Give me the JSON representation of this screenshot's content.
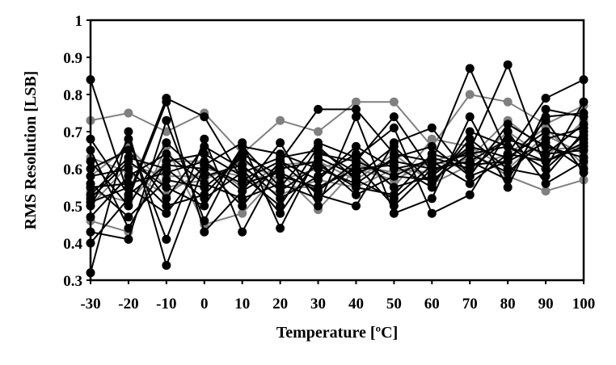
{
  "chart_data": {
    "type": "line",
    "title": "",
    "xlabel": "Temperature [ºC]",
    "ylabel": "RMS Resolution [LSB]",
    "x": [
      -30,
      -20,
      -10,
      0,
      10,
      20,
      30,
      40,
      50,
      60,
      70,
      80,
      90,
      100
    ],
    "xlim": [
      -30,
      100
    ],
    "ylim": [
      0.3,
      1
    ],
    "yticks": [
      "0.3",
      "0.4",
      "0.5",
      "0.6",
      "0.7",
      "0.8",
      "0.9",
      "1"
    ],
    "xticks": [
      "-30",
      "-20",
      "-10",
      "0",
      "10",
      "20",
      "30",
      "40",
      "50",
      "60",
      "70",
      "80",
      "90",
      "100"
    ],
    "grid": false,
    "legend": "none",
    "colors": {
      "black": "#000000",
      "gray": "#808080"
    },
    "series": [
      {
        "color": "black",
        "values": [
          0.84,
          0.53,
          0.79,
          0.74,
          0.57,
          0.62,
          0.76,
          0.76,
          0.64,
          0.62,
          0.87,
          0.64,
          0.79,
          0.84
        ]
      },
      {
        "color": "black",
        "values": [
          0.32,
          0.7,
          0.34,
          0.61,
          0.67,
          0.44,
          0.64,
          0.62,
          0.74,
          0.59,
          0.65,
          0.88,
          0.6,
          0.78
        ]
      },
      {
        "color": "black",
        "values": [
          0.4,
          0.52,
          0.78,
          0.43,
          0.54,
          0.67,
          0.5,
          0.74,
          0.48,
          0.52,
          0.74,
          0.55,
          0.76,
          0.74
        ]
      },
      {
        "color": "black",
        "values": [
          0.43,
          0.41,
          0.73,
          0.46,
          0.66,
          0.55,
          0.67,
          0.63,
          0.71,
          0.48,
          0.53,
          0.7,
          0.56,
          0.62
        ]
      },
      {
        "color": "black",
        "values": [
          0.5,
          0.68,
          0.41,
          0.68,
          0.43,
          0.62,
          0.53,
          0.5,
          0.67,
          0.71,
          0.58,
          0.62,
          0.73,
          0.59
        ]
      },
      {
        "color": "black",
        "values": [
          0.65,
          0.44,
          0.62,
          0.64,
          0.58,
          0.5,
          0.66,
          0.57,
          0.52,
          0.61,
          0.64,
          0.59,
          0.68,
          0.71
        ]
      },
      {
        "color": "black",
        "values": [
          0.58,
          0.6,
          0.5,
          0.53,
          0.64,
          0.58,
          0.55,
          0.6,
          0.61,
          0.55,
          0.7,
          0.66,
          0.62,
          0.66
        ]
      },
      {
        "color": "black",
        "values": [
          0.55,
          0.56,
          0.59,
          0.62,
          0.54,
          0.6,
          0.62,
          0.53,
          0.58,
          0.63,
          0.6,
          0.68,
          0.64,
          0.72
        ]
      },
      {
        "color": "black",
        "values": [
          0.62,
          0.5,
          0.67,
          0.58,
          0.61,
          0.52,
          0.58,
          0.64,
          0.55,
          0.58,
          0.66,
          0.63,
          0.7,
          0.68
        ]
      },
      {
        "color": "black",
        "values": [
          0.52,
          0.62,
          0.55,
          0.5,
          0.66,
          0.64,
          0.6,
          0.56,
          0.63,
          0.66,
          0.58,
          0.72,
          0.66,
          0.63
        ]
      },
      {
        "color": "black",
        "values": [
          0.47,
          0.58,
          0.64,
          0.56,
          0.52,
          0.56,
          0.52,
          0.61,
          0.5,
          0.6,
          0.62,
          0.57,
          0.74,
          0.75
        ]
      },
      {
        "color": "black",
        "values": [
          0.6,
          0.65,
          0.52,
          0.66,
          0.6,
          0.48,
          0.63,
          0.58,
          0.66,
          0.56,
          0.68,
          0.6,
          0.58,
          0.7
        ]
      },
      {
        "color": "black",
        "values": [
          0.68,
          0.53,
          0.61,
          0.6,
          0.5,
          0.62,
          0.57,
          0.66,
          0.6,
          0.62,
          0.56,
          0.64,
          0.62,
          0.67
        ]
      },
      {
        "color": "black",
        "values": [
          0.56,
          0.47,
          0.57,
          0.55,
          0.63,
          0.54,
          0.61,
          0.55,
          0.53,
          0.64,
          0.61,
          0.62,
          0.67,
          0.6
        ]
      },
      {
        "color": "black",
        "values": [
          0.51,
          0.55,
          0.48,
          0.61,
          0.56,
          0.59,
          0.54,
          0.62,
          0.58,
          0.57,
          0.64,
          0.66,
          0.6,
          0.69
        ]
      },
      {
        "color": "black",
        "values": [
          0.53,
          0.63,
          0.6,
          0.52,
          0.59,
          0.63,
          0.65,
          0.59,
          0.62,
          0.6,
          0.62,
          0.68,
          0.64,
          0.65
        ]
      },
      {
        "color": "gray",
        "values": [
          0.73,
          0.75,
          0.7,
          0.75,
          0.64,
          0.73,
          0.7,
          0.78,
          0.78,
          0.66,
          0.8,
          0.78,
          0.72,
          0.77
        ]
      },
      {
        "color": "gray",
        "values": [
          0.46,
          0.43,
          0.66,
          0.45,
          0.48,
          0.59,
          0.49,
          0.6,
          0.57,
          0.62,
          0.65,
          0.58,
          0.54,
          0.57
        ]
      },
      {
        "color": "gray",
        "values": [
          0.63,
          0.59,
          0.53,
          0.6,
          0.58,
          0.53,
          0.57,
          0.55,
          0.6,
          0.59,
          0.63,
          0.73,
          0.65,
          0.66
        ]
      },
      {
        "color": "gray",
        "values": [
          0.58,
          0.66,
          0.55,
          0.57,
          0.62,
          0.57,
          0.6,
          0.63,
          0.55,
          0.68,
          0.66,
          0.6,
          0.69,
          0.64
        ]
      },
      {
        "color": "gray",
        "values": [
          0.54,
          0.51,
          0.62,
          0.62,
          0.55,
          0.61,
          0.62,
          0.57,
          0.64,
          0.56,
          0.61,
          0.7,
          0.63,
          0.73
        ]
      },
      {
        "color": "gray",
        "values": [
          0.5,
          0.61,
          0.58,
          0.58,
          0.6,
          0.55,
          0.55,
          0.61,
          0.59,
          0.62,
          0.6,
          0.64,
          0.71,
          0.61
        ]
      }
    ]
  }
}
